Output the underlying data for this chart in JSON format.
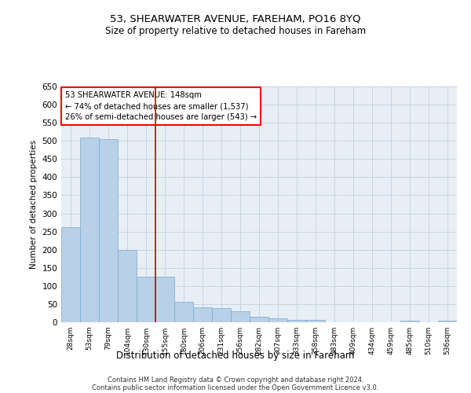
{
  "title": "53, SHEARWATER AVENUE, FAREHAM, PO16 8YQ",
  "subtitle": "Size of property relative to detached houses in Fareham",
  "xlabel": "Distribution of detached houses by size in Fareham",
  "ylabel": "Number of detached properties",
  "categories": [
    "28sqm",
    "53sqm",
    "79sqm",
    "104sqm",
    "130sqm",
    "155sqm",
    "180sqm",
    "206sqm",
    "231sqm",
    "256sqm",
    "282sqm",
    "307sqm",
    "333sqm",
    "358sqm",
    "383sqm",
    "409sqm",
    "434sqm",
    "459sqm",
    "485sqm",
    "510sqm",
    "536sqm"
  ],
  "values": [
    262,
    510,
    505,
    200,
    125,
    125,
    57,
    42,
    40,
    30,
    16,
    10,
    6,
    6,
    0,
    0,
    0,
    0,
    5,
    0,
    5
  ],
  "bar_color": "#b8d0e8",
  "bar_edge_color": "#7aaac8",
  "grid_color": "#c8d4e4",
  "background_color": "#e8eef6",
  "annotation_label": "53 SHEARWATER AVENUE: 148sqm",
  "annotation_line1": "← 74% of detached houses are smaller (1,537)",
  "annotation_line2": "26% of semi-detached houses are larger (543) →",
  "vline_color": "#cc0000",
  "vline_x_index": 4.5,
  "ylim": [
    0,
    650
  ],
  "yticks": [
    0,
    50,
    100,
    150,
    200,
    250,
    300,
    350,
    400,
    450,
    500,
    550,
    600,
    650
  ],
  "footer_line1": "Contains HM Land Registry data © Crown copyright and database right 2024.",
  "footer_line2": "Contains public sector information licensed under the Open Government Licence v3.0."
}
